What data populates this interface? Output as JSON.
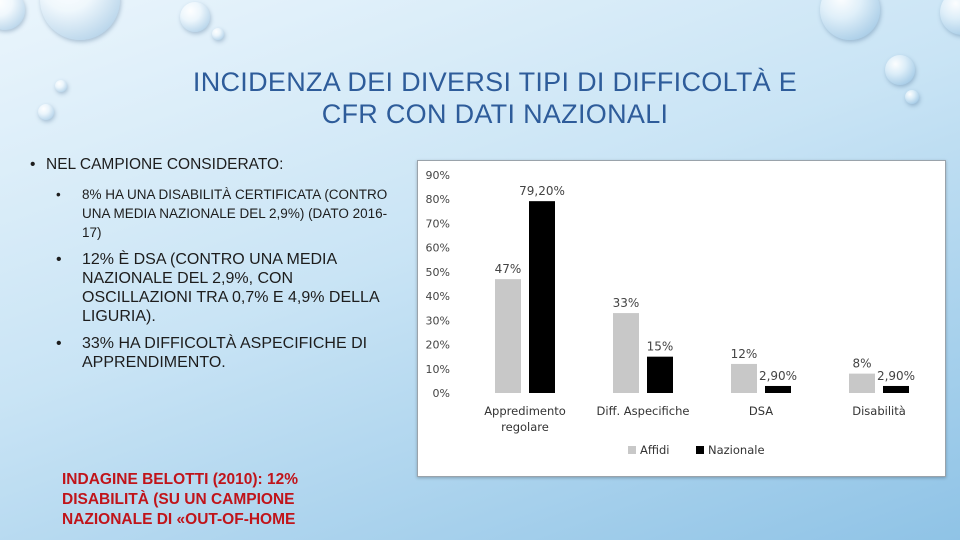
{
  "title": {
    "line1": "INCIDENZA DEI DIVERSI TIPI DI DIFFICOLTÀ E",
    "line2": "CFR CON DATI NAZIONALI"
  },
  "bullets": {
    "main": "NEL CAMPIONE CONSIDERATO:",
    "sub1": "8% HA UNA DISABILITÀ CERTIFICATA (CONTRO UNA MEDIA NAZIONALE DEL 2,9%) (DATO 2016-17)",
    "sub2": "12% È DSA (CONTRO UNA MEDIA NAZIONALE DEL 2,9%, CON OSCILLAZIONI TRA 0,7% E 4,9% DELLA LIGURIA).",
    "sub3": "33% HA DIFFICOLTÀ ASPECIFICHE DI APPRENDIMENTO."
  },
  "note": "INDAGINE BELOTTI (2010): 12% DISABILITÀ (SU UN CAMPIONE NAZIONALE DI «OUT-OF-HOME",
  "colors": {
    "title": "#2e5c9a",
    "note": "#c0141a",
    "affidi": "#c8c8c8",
    "nazionale": "#000000"
  },
  "chart_data": {
    "type": "bar",
    "categories": [
      "Appredimento regolare",
      "Diff. Aspecifiche",
      "DSA",
      "Disabilità"
    ],
    "series": [
      {
        "name": "Affidi",
        "values": [
          47,
          33,
          12,
          8
        ],
        "labels": [
          "47%",
          "33%",
          "12%",
          "8%"
        ]
      },
      {
        "name": "Nazionale",
        "values": [
          79.2,
          15,
          2.9,
          2.9
        ],
        "labels": [
          "79,20%",
          "15%",
          "2,90%",
          "2,90%"
        ]
      }
    ],
    "yticks": [
      "0%",
      "10%",
      "20%",
      "30%",
      "40%",
      "50%",
      "60%",
      "70%",
      "80%",
      "90%"
    ],
    "ylim": [
      0,
      90
    ],
    "legend_position": "bottom",
    "grid": false
  }
}
